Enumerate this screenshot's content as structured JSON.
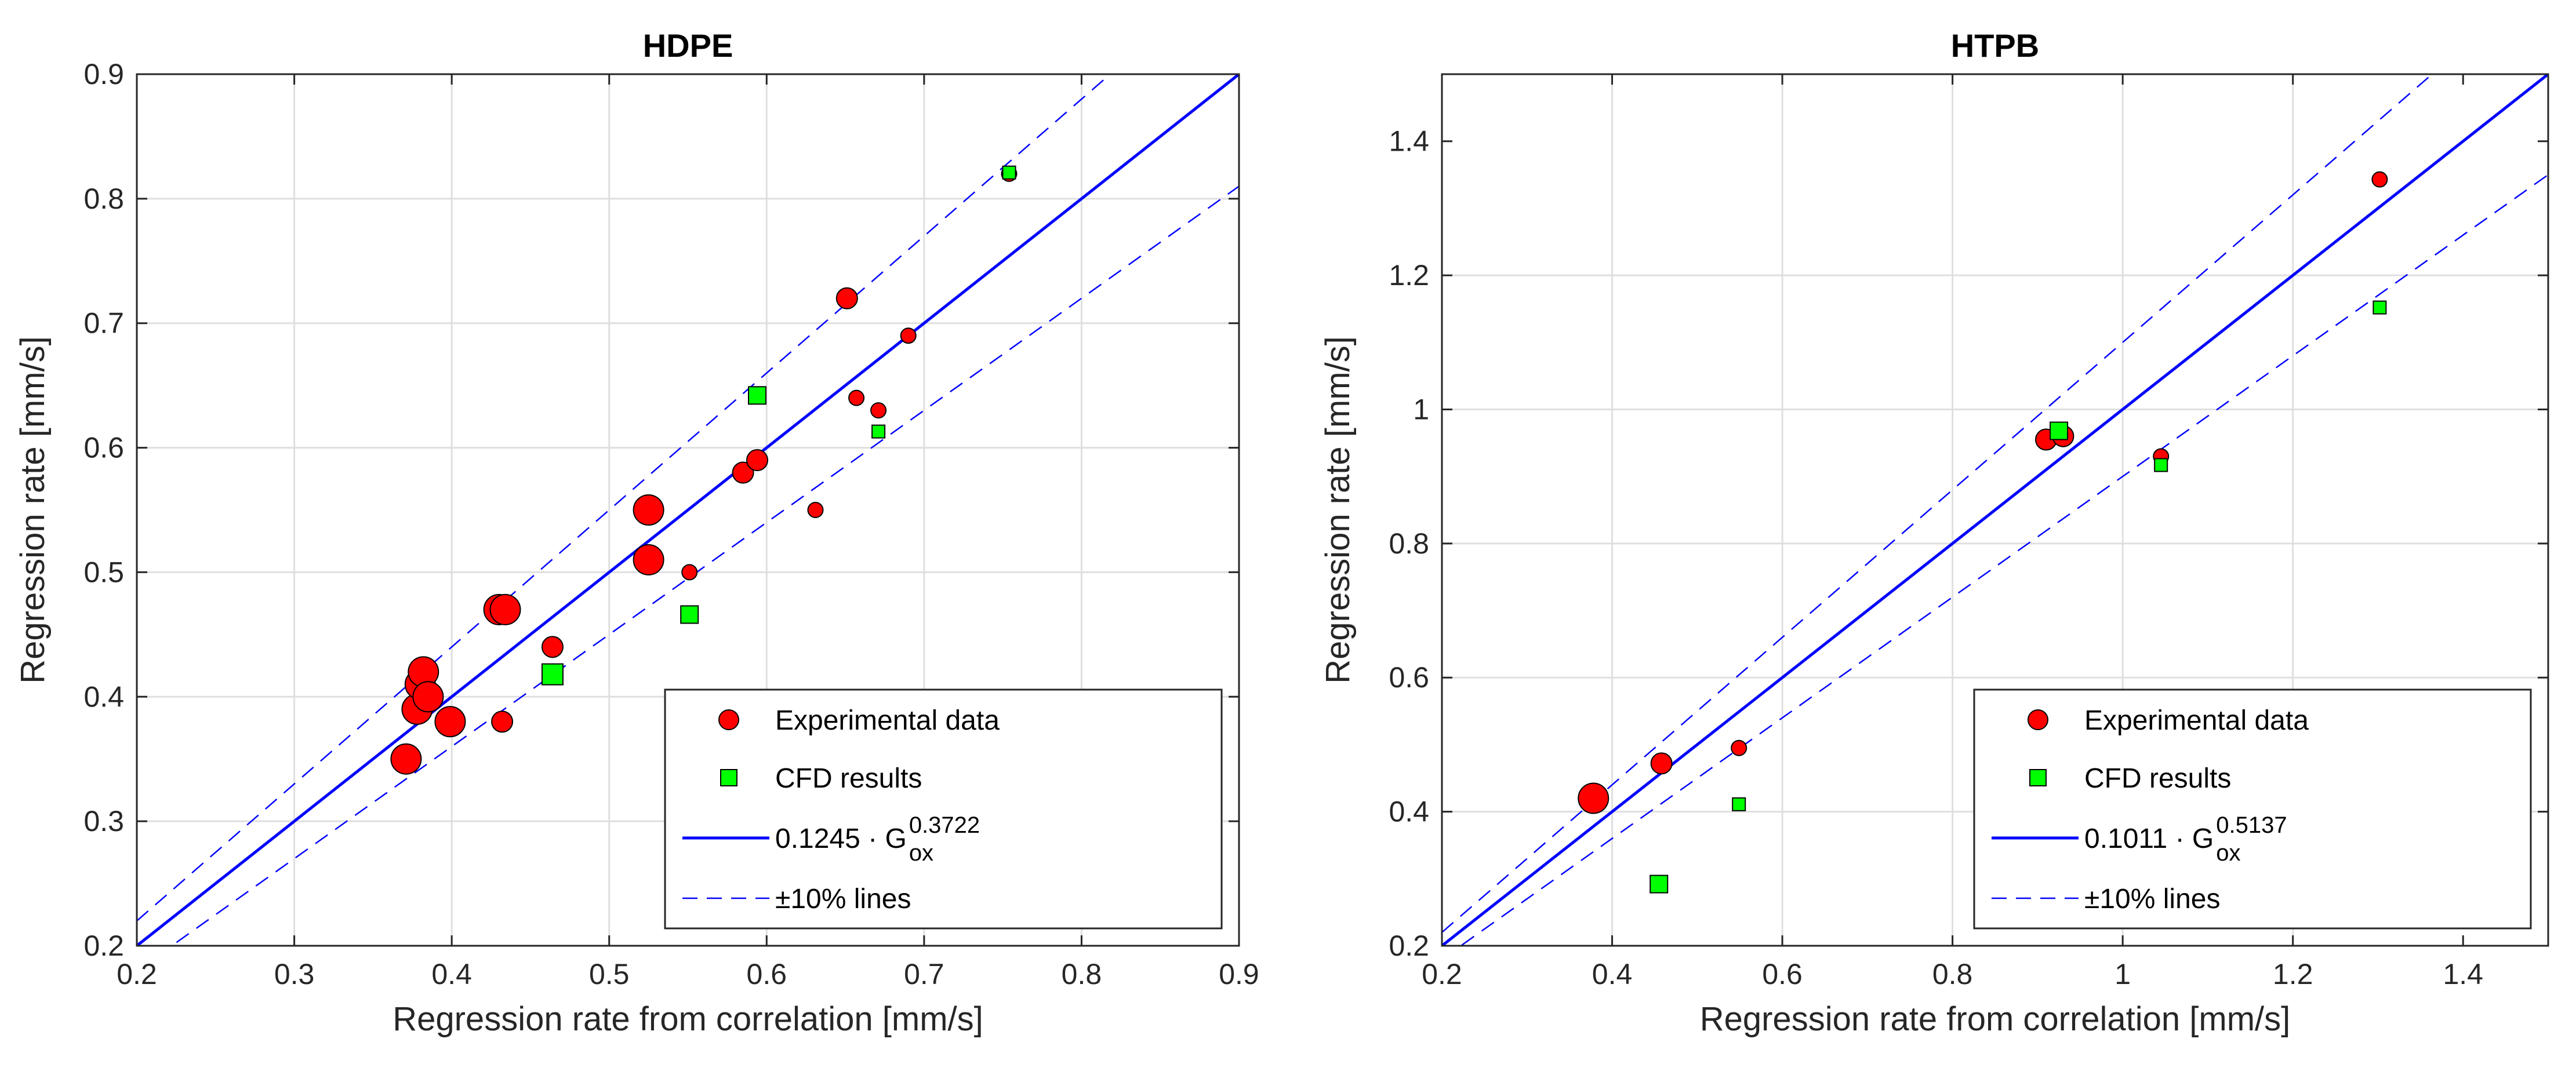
{
  "chart_data": [
    {
      "type": "scatter",
      "title": "HDPE",
      "xlabel": "Regression rate from correlation [mm/s]",
      "ylabel": "Regression rate [mm/s]",
      "xlim": [
        0.2,
        0.9
      ],
      "ylim": [
        0.2,
        0.9
      ],
      "xticks": [
        0.2,
        0.3,
        0.4,
        0.5,
        0.6,
        0.7,
        0.8,
        0.9
      ],
      "yticks": [
        0.2,
        0.3,
        0.4,
        0.5,
        0.6,
        0.7,
        0.8,
        0.9
      ],
      "xtick_labels": [
        "0.2",
        "0.3",
        "0.4",
        "0.5",
        "0.6",
        "0.7",
        "0.8",
        "0.9"
      ],
      "ytick_labels": [
        "0.2",
        "0.3",
        "0.4",
        "0.5",
        "0.6",
        "0.7",
        "0.8",
        "0.9"
      ],
      "grid": true,
      "legend_position": "bottom-right",
      "series": [
        {
          "name": "Experimental data",
          "marker": "circle",
          "color": "#ff0000",
          "points": [
            {
              "x": 0.371,
              "y": 0.35,
              "size": 3
            },
            {
              "x": 0.378,
              "y": 0.39,
              "size": 3
            },
            {
              "x": 0.38,
              "y": 0.41,
              "size": 3
            },
            {
              "x": 0.382,
              "y": 0.42,
              "size": 3
            },
            {
              "x": 0.385,
              "y": 0.4,
              "size": 3
            },
            {
              "x": 0.399,
              "y": 0.38,
              "size": 3
            },
            {
              "x": 0.43,
              "y": 0.47,
              "size": 3
            },
            {
              "x": 0.434,
              "y": 0.47,
              "size": 3
            },
            {
              "x": 0.432,
              "y": 0.38,
              "size": 2
            },
            {
              "x": 0.464,
              "y": 0.44,
              "size": 2
            },
            {
              "x": 0.525,
              "y": 0.55,
              "size": 3
            },
            {
              "x": 0.525,
              "y": 0.51,
              "size": 3
            },
            {
              "x": 0.551,
              "y": 0.5,
              "size": 1
            },
            {
              "x": 0.585,
              "y": 0.58,
              "size": 2
            },
            {
              "x": 0.594,
              "y": 0.59,
              "size": 2
            },
            {
              "x": 0.631,
              "y": 0.55,
              "size": 1
            },
            {
              "x": 0.651,
              "y": 0.72,
              "size": 2
            },
            {
              "x": 0.657,
              "y": 0.64,
              "size": 1
            },
            {
              "x": 0.671,
              "y": 0.63,
              "size": 1
            },
            {
              "x": 0.69,
              "y": 0.69,
              "size": 1
            },
            {
              "x": 0.754,
              "y": 0.82,
              "size": 1
            }
          ]
        },
        {
          "name": "CFD results",
          "marker": "square",
          "color": "#00ff00",
          "points": [
            {
              "x": 0.464,
              "y": 0.418,
              "size": 3
            },
            {
              "x": 0.551,
              "y": 0.466,
              "size": 2
            },
            {
              "x": 0.594,
              "y": 0.642,
              "size": 2
            },
            {
              "x": 0.671,
              "y": 0.613,
              "size": 1
            },
            {
              "x": 0.754,
              "y": 0.821,
              "size": 1
            }
          ]
        },
        {
          "name": "0.1245 · G_ox^0.3722",
          "type": "line",
          "style": "solid",
          "color": "#0000ff",
          "slope": 1.0
        },
        {
          "name": "±10% lines",
          "type": "line",
          "style": "dashed",
          "color": "#0000ff",
          "slopes": [
            1.1,
            0.9
          ]
        }
      ],
      "legend": [
        {
          "label": "Experimental data",
          "marker": "circle"
        },
        {
          "label": "CFD results",
          "marker": "square"
        },
        {
          "label": "0.1245 · G",
          "sup": "0.3722",
          "sub": "ox",
          "marker": "solid-line"
        },
        {
          "label": "±10% lines",
          "marker": "dashed-line"
        }
      ]
    },
    {
      "type": "scatter",
      "title": "HTPB",
      "xlabel": "Regression rate from correlation [mm/s]",
      "ylabel": "Regression rate [mm/s]",
      "xlim": [
        0.2,
        1.5
      ],
      "ylim": [
        0.2,
        1.5
      ],
      "xticks": [
        0.2,
        0.4,
        0.6,
        0.8,
        1.0,
        1.2,
        1.4
      ],
      "yticks": [
        0.2,
        0.4,
        0.6,
        0.8,
        1.0,
        1.2,
        1.4
      ],
      "xtick_labels": [
        "0.2",
        "0.4",
        "0.6",
        "0.8",
        "1",
        "1.2",
        "1.4"
      ],
      "ytick_labels": [
        "0.2",
        "0.4",
        "0.6",
        "0.8",
        "1",
        "1.2",
        "1.4"
      ],
      "grid": true,
      "legend_position": "bottom-right",
      "series": [
        {
          "name": "Experimental data",
          "marker": "circle",
          "color": "#ff0000",
          "points": [
            {
              "x": 0.378,
              "y": 0.42,
              "size": 3
            },
            {
              "x": 0.458,
              "y": 0.472,
              "size": 2
            },
            {
              "x": 0.549,
              "y": 0.495,
              "size": 1
            },
            {
              "x": 0.91,
              "y": 0.955,
              "size": 2
            },
            {
              "x": 0.93,
              "y": 0.96,
              "size": 2
            },
            {
              "x": 1.045,
              "y": 0.93,
              "size": 1
            },
            {
              "x": 1.302,
              "y": 1.343,
              "size": 1
            }
          ]
        },
        {
          "name": "CFD results",
          "marker": "square",
          "color": "#00ff00",
          "points": [
            {
              "x": 0.455,
              "y": 0.292,
              "size": 2
            },
            {
              "x": 0.549,
              "y": 0.411,
              "size": 1
            },
            {
              "x": 0.925,
              "y": 0.968,
              "size": 2
            },
            {
              "x": 1.045,
              "y": 0.917,
              "size": 1
            },
            {
              "x": 1.302,
              "y": 1.152,
              "size": 1
            }
          ]
        },
        {
          "name": "0.1011 · G_ox^0.5137",
          "type": "line",
          "style": "solid",
          "color": "#0000ff",
          "slope": 1.0
        },
        {
          "name": "±10% lines",
          "type": "line",
          "style": "dashed",
          "color": "#0000ff",
          "slopes": [
            1.1,
            0.9
          ]
        }
      ],
      "legend": [
        {
          "label": "Experimental data",
          "marker": "circle"
        },
        {
          "label": "CFD results",
          "marker": "square"
        },
        {
          "label": "0.1011 · G",
          "sup": "0.5137",
          "sub": "ox",
          "marker": "solid-line"
        },
        {
          "label": "±10% lines",
          "marker": "dashed-line"
        }
      ]
    }
  ]
}
